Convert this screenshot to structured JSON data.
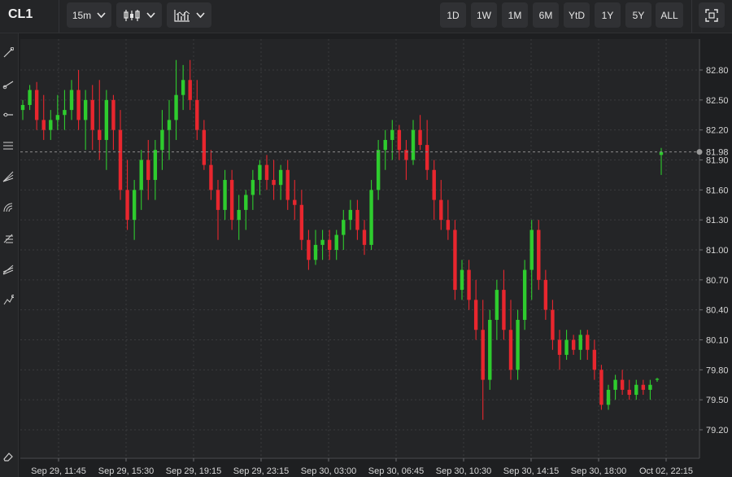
{
  "header": {
    "symbol": "CL1",
    "interval": "15m",
    "chart_type_icon": "candlestick-icon",
    "indicators_icon": "indicators-icon",
    "ranges": [
      "1D",
      "1W",
      "1M",
      "6M",
      "YtD",
      "1Y",
      "5Y",
      "ALL"
    ],
    "fullscreen_icon": "fullscreen-icon"
  },
  "tools": [
    "trend-line-icon",
    "ray-line-icon",
    "horizontal-line-icon",
    "parallel-channel-icon",
    "fib-fan-icon",
    "fib-arc-icon",
    "fib-retracement-icon",
    "gann-fan-icon",
    "path-icon",
    "eraser-icon"
  ],
  "colors": {
    "up": "#2ecc2e",
    "down": "#e8262e",
    "background": "#242527",
    "grid": "#3a3b3e",
    "crosshair": "#8a8a8a"
  },
  "chart_data": {
    "type": "candlestick",
    "symbol": "CL1",
    "interval": "15m",
    "ylim": [
      79.0,
      83.0
    ],
    "y_ticks": [
      82.8,
      82.5,
      82.2,
      81.9,
      81.6,
      81.3,
      81.0,
      80.7,
      80.4,
      80.1,
      79.8,
      79.5,
      79.2
    ],
    "x_tick_labels": [
      "Sep 29, 11:45",
      "Sep 29, 15:30",
      "Sep 29, 19:15",
      "Sep 29, 23:15",
      "Sep 30, 03:00",
      "Sep 30, 06:45",
      "Sep 30, 10:30",
      "Sep 30, 14:15",
      "Sep 30, 18:00",
      "Oct 02, 22:15"
    ],
    "current_price": 81.98,
    "current_price_label": "81.98",
    "grid": true,
    "candles": [
      [
        82.4,
        82.5,
        82.3,
        82.45
      ],
      [
        82.45,
        82.65,
        82.4,
        82.6
      ],
      [
        82.6,
        82.68,
        82.2,
        82.3
      ],
      [
        82.3,
        82.55,
        82.1,
        82.2
      ],
      [
        82.2,
        82.4,
        82.1,
        82.3
      ],
      [
        82.3,
        82.55,
        82.2,
        82.35
      ],
      [
        82.35,
        82.6,
        82.2,
        82.4
      ],
      [
        82.4,
        82.7,
        82.3,
        82.6
      ],
      [
        82.6,
        82.8,
        82.2,
        82.3
      ],
      [
        82.3,
        82.6,
        82.0,
        82.5
      ],
      [
        82.5,
        82.65,
        82.0,
        82.2
      ],
      [
        82.2,
        82.7,
        81.9,
        82.1
      ],
      [
        82.1,
        82.6,
        81.8,
        82.5
      ],
      [
        82.5,
        82.55,
        82.0,
        82.2
      ],
      [
        82.2,
        82.4,
        81.5,
        81.6
      ],
      [
        81.6,
        81.9,
        81.2,
        81.3
      ],
      [
        81.3,
        81.7,
        81.1,
        81.6
      ],
      [
        81.6,
        82.0,
        81.4,
        81.9
      ],
      [
        81.9,
        82.1,
        81.5,
        81.7
      ],
      [
        81.7,
        82.1,
        81.5,
        82.0
      ],
      [
        82.0,
        82.4,
        81.8,
        82.2
      ],
      [
        82.2,
        82.5,
        81.9,
        82.3
      ],
      [
        82.3,
        82.9,
        82.1,
        82.55
      ],
      [
        82.55,
        82.85,
        82.4,
        82.7
      ],
      [
        82.7,
        82.9,
        82.4,
        82.5
      ],
      [
        82.5,
        82.7,
        82.1,
        82.2
      ],
      [
        82.2,
        82.3,
        81.8,
        81.85
      ],
      [
        81.85,
        82.0,
        81.5,
        81.6
      ],
      [
        81.6,
        81.7,
        81.1,
        81.4
      ],
      [
        81.4,
        81.8,
        81.3,
        81.7
      ],
      [
        81.7,
        81.8,
        81.2,
        81.3
      ],
      [
        81.3,
        81.55,
        81.1,
        81.4
      ],
      [
        81.4,
        81.6,
        81.2,
        81.55
      ],
      [
        81.55,
        81.8,
        81.4,
        81.7
      ],
      [
        81.7,
        81.9,
        81.55,
        81.85
      ],
      [
        81.85,
        81.95,
        81.6,
        81.7
      ],
      [
        81.7,
        81.9,
        81.5,
        81.65
      ],
      [
        81.65,
        81.85,
        81.5,
        81.8
      ],
      [
        81.8,
        81.9,
        81.4,
        81.5
      ],
      [
        81.5,
        81.7,
        81.3,
        81.45
      ],
      [
        81.45,
        81.6,
        81.0,
        81.1
      ],
      [
        81.1,
        81.2,
        80.8,
        80.9
      ],
      [
        80.9,
        81.2,
        80.85,
        81.05
      ],
      [
        81.05,
        81.2,
        80.9,
        81.1
      ],
      [
        81.1,
        81.2,
        80.9,
        81.0
      ],
      [
        81.0,
        81.2,
        80.9,
        81.15
      ],
      [
        81.15,
        81.4,
        81.0,
        81.3
      ],
      [
        81.3,
        81.5,
        81.2,
        81.4
      ],
      [
        81.4,
        81.5,
        81.1,
        81.2
      ],
      [
        81.2,
        81.3,
        80.95,
        81.05
      ],
      [
        81.05,
        81.7,
        81.0,
        81.6
      ],
      [
        81.6,
        82.1,
        81.5,
        82.0
      ],
      [
        82.0,
        82.2,
        81.8,
        82.1
      ],
      [
        82.1,
        82.3,
        81.9,
        82.2
      ],
      [
        82.2,
        82.25,
        81.9,
        82.0
      ],
      [
        82.0,
        82.1,
        81.7,
        81.9
      ],
      [
        81.9,
        82.3,
        81.85,
        82.2
      ],
      [
        82.2,
        82.35,
        82.0,
        82.05
      ],
      [
        82.05,
        82.3,
        81.7,
        81.8
      ],
      [
        81.8,
        81.9,
        81.3,
        81.5
      ],
      [
        81.5,
        81.7,
        81.2,
        81.3
      ],
      [
        81.3,
        81.5,
        81.1,
        81.2
      ],
      [
        81.2,
        81.3,
        80.5,
        80.6
      ],
      [
        80.6,
        80.9,
        80.5,
        80.8
      ],
      [
        80.8,
        80.9,
        80.4,
        80.5
      ],
      [
        80.5,
        80.7,
        80.1,
        80.2
      ],
      [
        80.2,
        80.5,
        79.3,
        79.7
      ],
      [
        79.7,
        80.4,
        79.6,
        80.3
      ],
      [
        80.3,
        80.7,
        80.1,
        80.6
      ],
      [
        80.6,
        80.8,
        80.1,
        80.2
      ],
      [
        80.2,
        80.5,
        79.7,
        79.8
      ],
      [
        79.8,
        80.4,
        79.7,
        80.3
      ],
      [
        80.3,
        80.9,
        80.2,
        80.8
      ],
      [
        80.8,
        81.3,
        80.5,
        81.2
      ],
      [
        81.2,
        81.3,
        80.6,
        80.7
      ],
      [
        80.7,
        80.8,
        80.3,
        80.4
      ],
      [
        80.4,
        80.5,
        80.0,
        80.1
      ],
      [
        80.1,
        80.2,
        79.8,
        79.95
      ],
      [
        79.95,
        80.2,
        79.9,
        80.1
      ],
      [
        80.1,
        80.15,
        79.95,
        80.0
      ],
      [
        80.0,
        80.2,
        79.9,
        80.15
      ],
      [
        80.15,
        80.2,
        79.9,
        80.0
      ],
      [
        80.0,
        80.1,
        79.7,
        79.8
      ],
      [
        79.8,
        79.85,
        79.4,
        79.45
      ],
      [
        79.45,
        79.65,
        79.4,
        79.6
      ],
      [
        79.6,
        79.75,
        79.5,
        79.7
      ],
      [
        79.7,
        79.8,
        79.55,
        79.6
      ],
      [
        79.6,
        79.7,
        79.5,
        79.55
      ],
      [
        79.55,
        79.7,
        79.5,
        79.65
      ],
      [
        79.65,
        79.7,
        79.55,
        79.6
      ],
      [
        79.6,
        79.7,
        79.5,
        79.65
      ],
      [
        79.7,
        79.72,
        79.68,
        79.71
      ],
      [
        81.95,
        82.02,
        81.75,
        81.98
      ]
    ]
  }
}
